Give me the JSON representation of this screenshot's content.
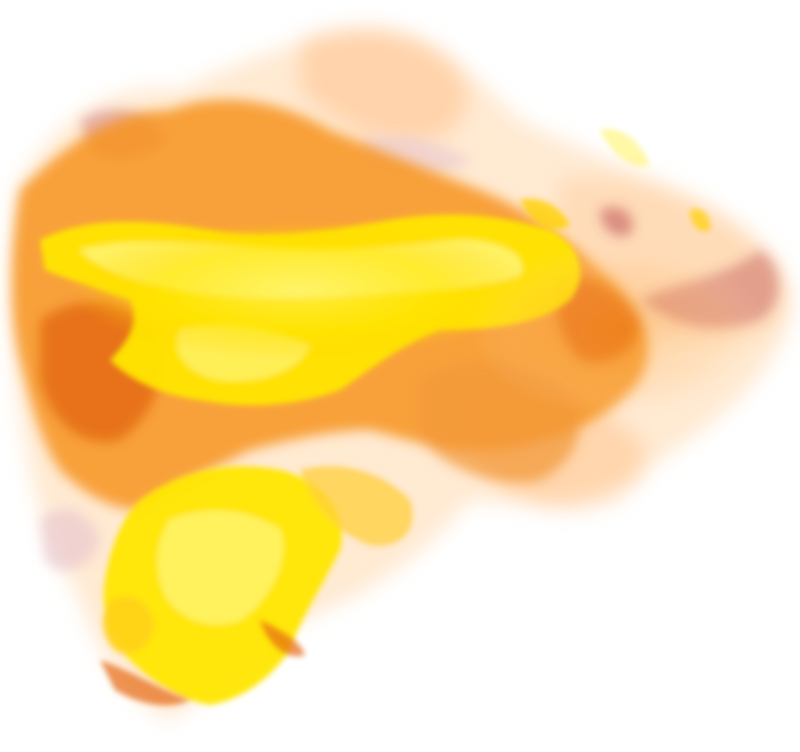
{
  "image": {
    "subject": "fire-flame",
    "background_color": "#ffffff",
    "colors": {
      "yellow": "#ffe600",
      "light_yellow": "#fff36b",
      "orange": "#f7941d",
      "light_orange": "#ffc27a",
      "deep_orange": "#e56a12",
      "red_smoke": "#b8444c",
      "pink_smoke": "#e9c7cf"
    }
  }
}
